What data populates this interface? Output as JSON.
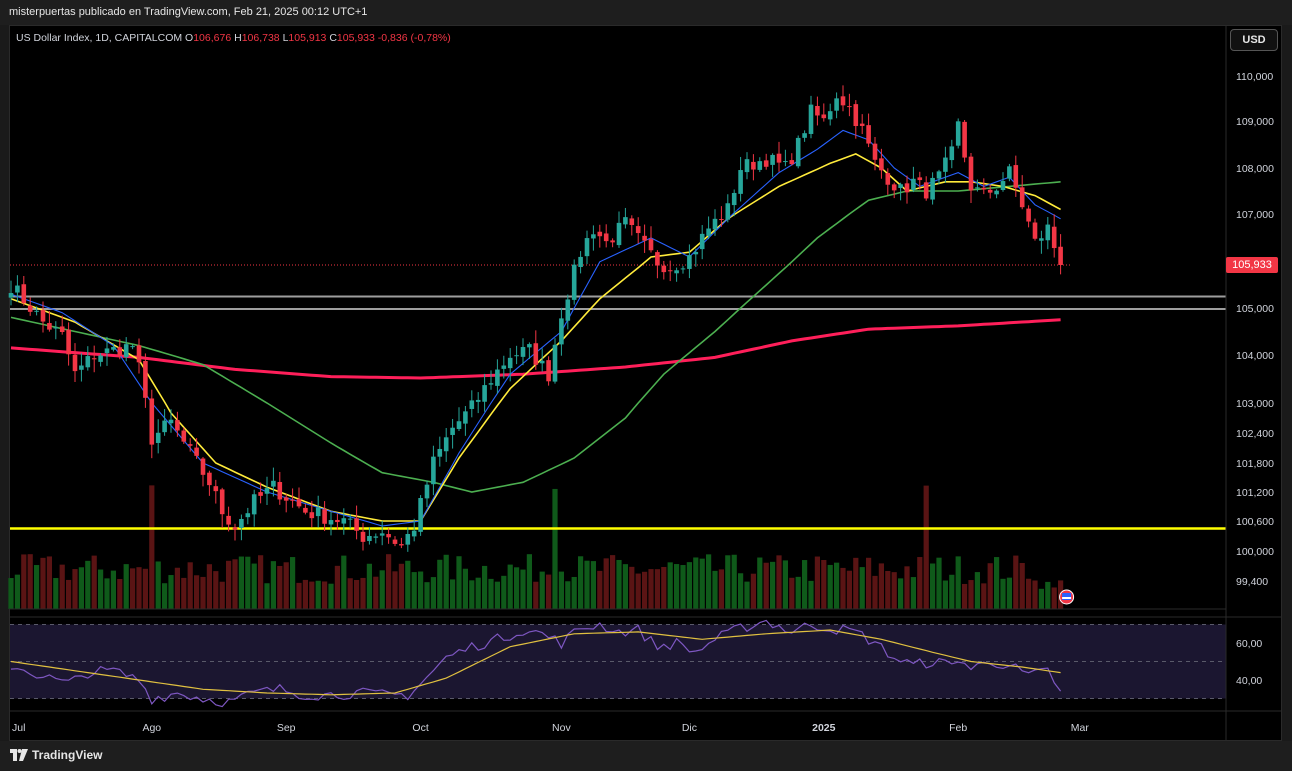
{
  "header": {
    "publish_text": "misterpuertas publicado en TradingView.com, Feb 21, 2025 00:12 UTC+1"
  },
  "legend": {
    "title": "US Dollar Index, 1D, CAPITALCOM",
    "o_label": "O",
    "o_value": "106,676",
    "h_label": "H",
    "h_value": "106,738",
    "l_label": "L",
    "l_value": "105,913",
    "c_label": "C",
    "c_value": "105,933",
    "change": "-0,836 (-0,78%)"
  },
  "currency_button": "USD",
  "last_price_tag": "105,933",
  "brand": "TradingView",
  "colors": {
    "up": "#26a69a",
    "down": "#f23645",
    "vol_up": "#0f5a1a",
    "vol_down": "#5a1414",
    "ma_fast": "#2962ff",
    "ma_mid": "#ffeb3b",
    "ma_slow": "#4caf50",
    "ma_long": "#ff1f5a",
    "rsi": "#7e57c2",
    "rsi_ma": "#e0c040",
    "level": "#ffff00",
    "zone": "#9e9e9e"
  },
  "chart_data": {
    "type": "candlestick",
    "price_axis": {
      "ticks": [
        110.0,
        109.0,
        108.0,
        107.0,
        105.0,
        104.0,
        103.0,
        102.4,
        101.8,
        101.2,
        100.6,
        100.0,
        99.4
      ],
      "tick_labels": [
        "110,000",
        "109,000",
        "108,000",
        "107,000",
        "105,000",
        "104,000",
        "103,000",
        "102,400",
        "101,800",
        "101,200",
        "100,600",
        "100,000",
        "99,400"
      ]
    },
    "rsi_axis": {
      "ticks": [
        60,
        40
      ],
      "tick_labels": [
        "60,00",
        "40,00"
      ],
      "band": [
        30,
        70
      ]
    },
    "time_axis": {
      "labels": [
        "Jul",
        "Ago",
        "Sep",
        "Oct",
        "Nov",
        "Dic",
        "2025",
        "Feb",
        "Mar"
      ],
      "label_index": [
        0,
        22,
        43,
        64,
        86,
        106,
        127,
        148,
        167
      ]
    },
    "last_close": 105.933,
    "horizontal_levels": [
      {
        "name": "support-zone-top",
        "value": 105.25,
        "color": "#9e9e9e"
      },
      {
        "name": "support-zone-bottom",
        "value": 104.98,
        "color": "#9e9e9e"
      },
      {
        "name": "key-level",
        "value": 100.45,
        "color": "#ffff00"
      }
    ],
    "anchors": {
      "close": [
        [
          0,
          105.5
        ],
        [
          5,
          104.7
        ],
        [
          8,
          104.4
        ],
        [
          10,
          103.6
        ],
        [
          13,
          104.0
        ],
        [
          16,
          104.1
        ],
        [
          19,
          104.2
        ],
        [
          20,
          103.7
        ],
        [
          22,
          102.3
        ],
        [
          25,
          102.6
        ],
        [
          28,
          102.0
        ],
        [
          31,
          101.4
        ],
        [
          33,
          100.8
        ],
        [
          35,
          100.5
        ],
        [
          38,
          101.0
        ],
        [
          41,
          101.3
        ],
        [
          43,
          101.1
        ],
        [
          46,
          100.8
        ],
        [
          49,
          100.7
        ],
        [
          52,
          100.6
        ],
        [
          55,
          100.3
        ],
        [
          58,
          100.4
        ],
        [
          61,
          100.1
        ],
        [
          63,
          100.5
        ],
        [
          66,
          101.8
        ],
        [
          69,
          102.5
        ],
        [
          72,
          102.9
        ],
        [
          75,
          103.5
        ],
        [
          78,
          104.0
        ],
        [
          81,
          104.1
        ],
        [
          84,
          103.6
        ],
        [
          86,
          104.9
        ],
        [
          89,
          106.2
        ],
        [
          91,
          106.7
        ],
        [
          93,
          106.4
        ],
        [
          96,
          106.8
        ],
        [
          99,
          106.3
        ],
        [
          101,
          106.0
        ],
        [
          103,
          105.9
        ],
        [
          106,
          106.1
        ],
        [
          109,
          106.7
        ],
        [
          112,
          107.1
        ],
        [
          114,
          108.0
        ],
        [
          118,
          108.2
        ],
        [
          121,
          108.0
        ],
        [
          123,
          108.5
        ],
        [
          125,
          109.2
        ],
        [
          127,
          109.0
        ],
        [
          129,
          109.6
        ],
        [
          131,
          109.3
        ],
        [
          133,
          108.8
        ],
        [
          135,
          108.1
        ],
        [
          137,
          107.8
        ],
        [
          139,
          107.5
        ],
        [
          141,
          107.7
        ],
        [
          143,
          107.5
        ],
        [
          145,
          107.8
        ],
        [
          147,
          108.3
        ],
        [
          148,
          108.9
        ],
        [
          150,
          107.6
        ],
        [
          152,
          107.4
        ],
        [
          154,
          107.6
        ],
        [
          156,
          107.9
        ],
        [
          158,
          107.2
        ],
        [
          160,
          106.4
        ],
        [
          162,
          106.7
        ],
        [
          164,
          105.93
        ]
      ],
      "ma20": [
        [
          0,
          105.2
        ],
        [
          10,
          104.7
        ],
        [
          20,
          103.9
        ],
        [
          25,
          102.8
        ],
        [
          32,
          101.8
        ],
        [
          40,
          101.3
        ],
        [
          50,
          100.8
        ],
        [
          58,
          100.6
        ],
        [
          64,
          100.6
        ],
        [
          70,
          101.9
        ],
        [
          78,
          103.3
        ],
        [
          86,
          104.3
        ],
        [
          92,
          105.2
        ],
        [
          100,
          106.1
        ],
        [
          106,
          106.2
        ],
        [
          112,
          106.9
        ],
        [
          120,
          107.6
        ],
        [
          128,
          108.1
        ],
        [
          132,
          108.3
        ],
        [
          136,
          108.0
        ],
        [
          140,
          107.5
        ],
        [
          146,
          107.7
        ],
        [
          150,
          107.7
        ],
        [
          155,
          107.6
        ],
        [
          160,
          107.4
        ],
        [
          164,
          107.1
        ]
      ],
      "ma10": [
        [
          0,
          105.3
        ],
        [
          8,
          104.9
        ],
        [
          16,
          104.2
        ],
        [
          22,
          103.0
        ],
        [
          30,
          101.8
        ],
        [
          40,
          101.2
        ],
        [
          50,
          100.8
        ],
        [
          58,
          100.5
        ],
        [
          64,
          100.6
        ],
        [
          70,
          102.0
        ],
        [
          78,
          103.6
        ],
        [
          86,
          104.5
        ],
        [
          92,
          106.0
        ],
        [
          100,
          106.5
        ],
        [
          106,
          106.1
        ],
        [
          112,
          106.9
        ],
        [
          120,
          107.9
        ],
        [
          126,
          108.4
        ],
        [
          130,
          108.8
        ],
        [
          134,
          108.6
        ],
        [
          138,
          108.0
        ],
        [
          142,
          107.6
        ],
        [
          148,
          107.9
        ],
        [
          152,
          107.6
        ],
        [
          156,
          107.8
        ],
        [
          160,
          107.2
        ],
        [
          164,
          106.9
        ]
      ],
      "ma50": [
        [
          0,
          104.8
        ],
        [
          10,
          104.5
        ],
        [
          20,
          104.2
        ],
        [
          30,
          103.8
        ],
        [
          40,
          103.0
        ],
        [
          50,
          102.2
        ],
        [
          58,
          101.6
        ],
        [
          66,
          101.4
        ],
        [
          72,
          101.2
        ],
        [
          80,
          101.4
        ],
        [
          88,
          101.9
        ],
        [
          96,
          102.7
        ],
        [
          102,
          103.6
        ],
        [
          110,
          104.5
        ],
        [
          118,
          105.5
        ],
        [
          126,
          106.5
        ],
        [
          134,
          107.3
        ],
        [
          140,
          107.5
        ],
        [
          148,
          107.5
        ],
        [
          156,
          107.6
        ],
        [
          164,
          107.7
        ]
      ],
      "ma200": [
        [
          0,
          104.15
        ],
        [
          20,
          103.95
        ],
        [
          35,
          103.7
        ],
        [
          50,
          103.55
        ],
        [
          64,
          103.52
        ],
        [
          80,
          103.6
        ],
        [
          96,
          103.75
        ],
        [
          110,
          103.95
        ],
        [
          122,
          104.3
        ],
        [
          134,
          104.55
        ],
        [
          148,
          104.62
        ],
        [
          164,
          104.75
        ]
      ],
      "rsi": [
        [
          0,
          48
        ],
        [
          5,
          42
        ],
        [
          9,
          38
        ],
        [
          12,
          44
        ],
        [
          16,
          45
        ],
        [
          20,
          40
        ],
        [
          22,
          30
        ],
        [
          26,
          33
        ],
        [
          30,
          30
        ],
        [
          34,
          28
        ],
        [
          38,
          33
        ],
        [
          42,
          35
        ],
        [
          46,
          32
        ],
        [
          50,
          32
        ],
        [
          54,
          33
        ],
        [
          58,
          32
        ],
        [
          62,
          32
        ],
        [
          64,
          38
        ],
        [
          68,
          52
        ],
        [
          72,
          58
        ],
        [
          76,
          62
        ],
        [
          80,
          67
        ],
        [
          83,
          65
        ],
        [
          86,
          60
        ],
        [
          89,
          68
        ],
        [
          92,
          70
        ],
        [
          95,
          66
        ],
        [
          98,
          67
        ],
        [
          101,
          58
        ],
        [
          104,
          60
        ],
        [
          107,
          55
        ],
        [
          110,
          62
        ],
        [
          114,
          68
        ],
        [
          118,
          72
        ],
        [
          122,
          66
        ],
        [
          125,
          70
        ],
        [
          128,
          68
        ],
        [
          132,
          66
        ],
        [
          135,
          60
        ],
        [
          138,
          52
        ],
        [
          141,
          48
        ],
        [
          144,
          50
        ],
        [
          147,
          48
        ],
        [
          148,
          52
        ],
        [
          150,
          46
        ],
        [
          153,
          50
        ],
        [
          156,
          48
        ],
        [
          159,
          42
        ],
        [
          162,
          45
        ],
        [
          164,
          34
        ]
      ],
      "rsi_ma": [
        [
          0,
          50
        ],
        [
          10,
          45
        ],
        [
          20,
          40
        ],
        [
          30,
          35
        ],
        [
          40,
          33
        ],
        [
          50,
          32
        ],
        [
          60,
          33
        ],
        [
          68,
          41
        ],
        [
          78,
          58
        ],
        [
          88,
          65
        ],
        [
          98,
          66
        ],
        [
          108,
          62
        ],
        [
          118,
          65
        ],
        [
          128,
          67
        ],
        [
          136,
          62
        ],
        [
          144,
          55
        ],
        [
          150,
          50
        ],
        [
          158,
          47
        ],
        [
          164,
          44
        ]
      ]
    }
  }
}
